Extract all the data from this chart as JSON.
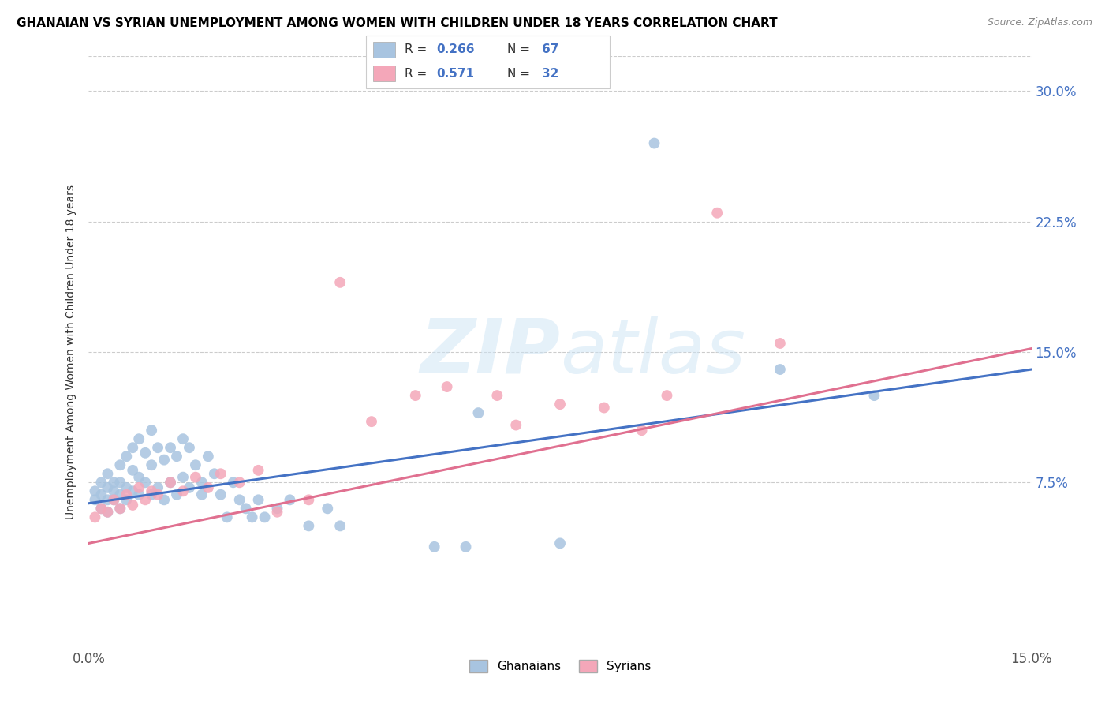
{
  "title": "GHANAIAN VS SYRIAN UNEMPLOYMENT AMONG WOMEN WITH CHILDREN UNDER 18 YEARS CORRELATION CHART",
  "source": "Source: ZipAtlas.com",
  "ylabel": "Unemployment Among Women with Children Under 18 years",
  "xlim": [
    0.0,
    0.15
  ],
  "ylim": [
    -0.02,
    0.32
  ],
  "ghanaian_color": "#a8c4e0",
  "syrian_color": "#f4a7b9",
  "ghanaian_line_color": "#4472c4",
  "syrian_line_color": "#e07090",
  "x_tick_vals": [
    0.0,
    0.15
  ],
  "x_tick_labels": [
    "0.0%",
    "15.0%"
  ],
  "y_tick_vals": [
    0.0,
    0.075,
    0.15,
    0.225,
    0.3
  ],
  "y_tick_labels": [
    "",
    "7.5%",
    "15.0%",
    "22.5%",
    "30.0%"
  ],
  "grid_vals": [
    0.075,
    0.15,
    0.225,
    0.3
  ],
  "ghanaian_x": [
    0.001,
    0.001,
    0.002,
    0.002,
    0.002,
    0.003,
    0.003,
    0.003,
    0.003,
    0.004,
    0.004,
    0.004,
    0.005,
    0.005,
    0.005,
    0.005,
    0.006,
    0.006,
    0.006,
    0.007,
    0.007,
    0.007,
    0.008,
    0.008,
    0.008,
    0.009,
    0.009,
    0.01,
    0.01,
    0.01,
    0.011,
    0.011,
    0.012,
    0.012,
    0.013,
    0.013,
    0.014,
    0.014,
    0.015,
    0.015,
    0.016,
    0.016,
    0.017,
    0.018,
    0.018,
    0.019,
    0.02,
    0.021,
    0.022,
    0.023,
    0.024,
    0.025,
    0.026,
    0.027,
    0.028,
    0.03,
    0.032,
    0.035,
    0.038,
    0.04,
    0.055,
    0.06,
    0.062,
    0.075,
    0.09,
    0.11,
    0.125
  ],
  "ghanaian_y": [
    0.07,
    0.065,
    0.075,
    0.068,
    0.06,
    0.072,
    0.065,
    0.08,
    0.058,
    0.075,
    0.07,
    0.065,
    0.085,
    0.068,
    0.075,
    0.06,
    0.09,
    0.072,
    0.065,
    0.095,
    0.082,
    0.07,
    0.1,
    0.078,
    0.068,
    0.092,
    0.075,
    0.105,
    0.085,
    0.068,
    0.095,
    0.072,
    0.088,
    0.065,
    0.095,
    0.075,
    0.09,
    0.068,
    0.1,
    0.078,
    0.095,
    0.072,
    0.085,
    0.075,
    0.068,
    0.09,
    0.08,
    0.068,
    0.055,
    0.075,
    0.065,
    0.06,
    0.055,
    0.065,
    0.055,
    0.06,
    0.065,
    0.05,
    0.06,
    0.05,
    0.038,
    0.038,
    0.115,
    0.04,
    0.27,
    0.14,
    0.125
  ],
  "syrian_x": [
    0.001,
    0.002,
    0.003,
    0.004,
    0.005,
    0.006,
    0.007,
    0.008,
    0.009,
    0.01,
    0.011,
    0.013,
    0.015,
    0.017,
    0.019,
    0.021,
    0.024,
    0.027,
    0.03,
    0.035,
    0.04,
    0.045,
    0.052,
    0.057,
    0.065,
    0.068,
    0.075,
    0.082,
    0.088,
    0.092,
    0.1,
    0.11
  ],
  "syrian_y": [
    0.055,
    0.06,
    0.058,
    0.065,
    0.06,
    0.068,
    0.062,
    0.072,
    0.065,
    0.07,
    0.068,
    0.075,
    0.07,
    0.078,
    0.072,
    0.08,
    0.075,
    0.082,
    0.058,
    0.065,
    0.19,
    0.11,
    0.125,
    0.13,
    0.125,
    0.108,
    0.12,
    0.118,
    0.105,
    0.125,
    0.23,
    0.155
  ],
  "blue_line_y0": 0.063,
  "blue_line_y1": 0.14,
  "pink_line_y0": 0.04,
  "pink_line_y1": 0.152
}
